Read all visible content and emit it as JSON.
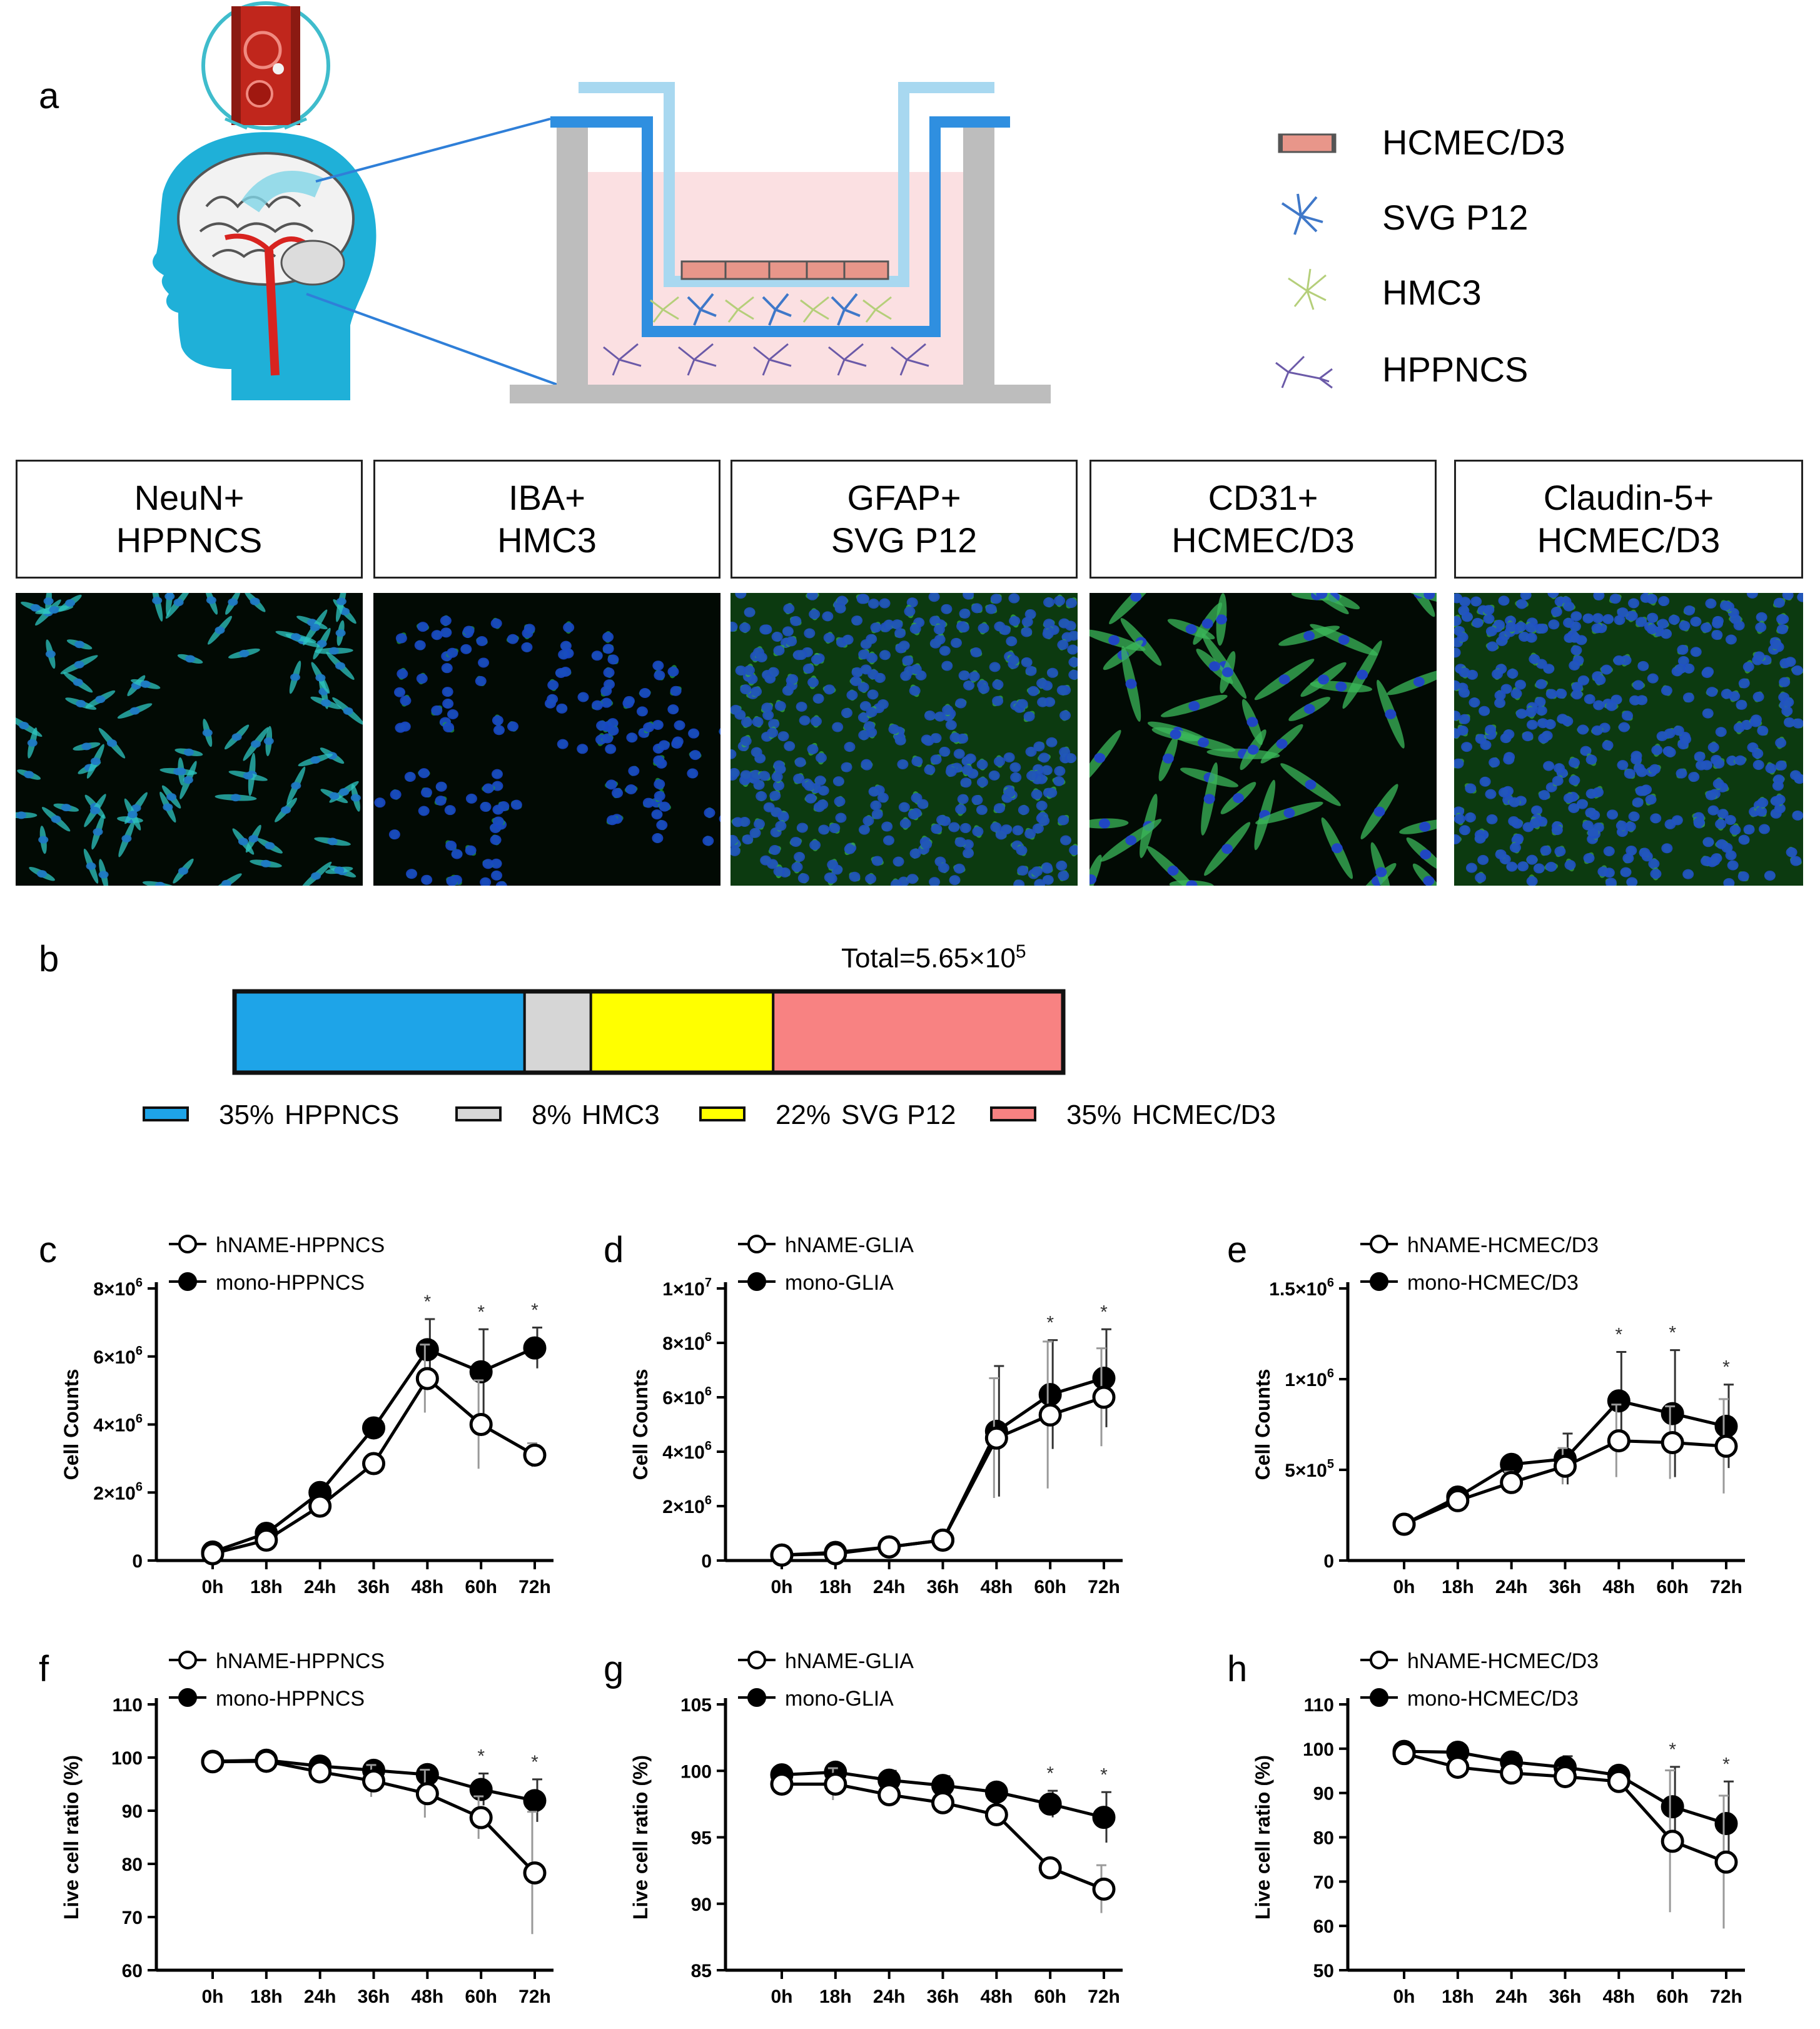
{
  "panels": {
    "a": "a",
    "b": "b",
    "c": "c",
    "d": "d",
    "e": "e",
    "f": "f",
    "g": "g",
    "h": "h"
  },
  "legend_a": [
    {
      "label": "HCMEC/D3",
      "icon": "endothelial-cell-icon",
      "color": "#e8968a"
    },
    {
      "label": "SVG P12",
      "icon": "astrocyte-icon",
      "color": "#3f78c9"
    },
    {
      "label": "HMC3",
      "icon": "microglia-icon",
      "color": "#b5cf7a"
    },
    {
      "label": "HPPNCS",
      "icon": "neuron-icon",
      "color": "#6b5aa8"
    }
  ],
  "ihc": [
    {
      "line1": "NeuN+",
      "line2": "HPPNCS",
      "stain": "#2ec5c0",
      "nuclei": "#1f78c8"
    },
    {
      "line1": "IBA+",
      "line2": "HMC3",
      "stain": "#1fa23a",
      "nuclei": "#1846c8"
    },
    {
      "line1": "GFAP+",
      "line2": "SVG P12",
      "stain": "#35b540",
      "nuclei": "#2050c0"
    },
    {
      "line1": "CD31+",
      "line2": "HCMEC/D3",
      "stain": "#3bb85a",
      "nuclei": "#1f3ed0"
    },
    {
      "line1": "Claudin-5+",
      "line2": "HCMEC/D3",
      "stain": "#3aa83a",
      "nuclei": "#2050c8"
    }
  ],
  "composition": {
    "total_prefix": "Total=5.65×10",
    "total_exp": "5",
    "segments": [
      {
        "percent": 35,
        "pct_label": "35%",
        "name": "HPPNCS",
        "color": "#1ea4e8"
      },
      {
        "percent": 8,
        "pct_label": "8%",
        "name": "HMC3",
        "color": "#d6d6d6"
      },
      {
        "percent": 22,
        "pct_label": "22%",
        "name": "SVG P12",
        "color": "#ffff00"
      },
      {
        "percent": 35,
        "pct_label": "35%",
        "name": "HCMEC/D3",
        "color": "#f88282"
      }
    ]
  },
  "chart_data": [
    {
      "panel": "c",
      "type": "line",
      "categories": [
        "0h",
        "18h",
        "24h",
        "36h",
        "48h",
        "60h",
        "72h"
      ],
      "ylabel": "Cell Counts",
      "ylim": [
        0,
        8000000
      ],
      "yticks": [
        {
          "v": 0,
          "base": "0",
          "exp": ""
        },
        {
          "v": 2000000,
          "base": "2×10",
          "exp": "6"
        },
        {
          "v": 4000000,
          "base": "4×10",
          "exp": "6"
        },
        {
          "v": 6000000,
          "base": "6×10",
          "exp": "6"
        },
        {
          "v": 8000000,
          "base": "8×10",
          "exp": "6"
        }
      ],
      "series": [
        {
          "name": "hNAME-HPPNCS",
          "marker": "open",
          "values": [
            200000,
            600000,
            1600000,
            2850000,
            5350000,
            4000000,
            3100000
          ],
          "errors": [
            50000,
            100000,
            150000,
            200000,
            1000000,
            1300000,
            350000
          ]
        },
        {
          "name": "mono-HPPNCS",
          "marker": "filled",
          "values": [
            250000,
            800000,
            2000000,
            3900000,
            6200000,
            5550000,
            6250000
          ],
          "errors": [
            50000,
            100000,
            150000,
            200000,
            900000,
            1250000,
            600000
          ]
        }
      ],
      "significance": [
        "",
        "",
        "",
        "",
        "*",
        "*",
        "*"
      ]
    },
    {
      "panel": "d",
      "type": "line",
      "categories": [
        "0h",
        "18h",
        "24h",
        "36h",
        "48h",
        "60h",
        "72h"
      ],
      "ylabel": "Cell Counts",
      "ylim": [
        0,
        10000000
      ],
      "yticks": [
        {
          "v": 0,
          "base": "0",
          "exp": ""
        },
        {
          "v": 2000000,
          "base": "2×10",
          "exp": "6"
        },
        {
          "v": 4000000,
          "base": "4×10",
          "exp": "6"
        },
        {
          "v": 6000000,
          "base": "6×10",
          "exp": "6"
        },
        {
          "v": 8000000,
          "base": "8×10",
          "exp": "6"
        },
        {
          "v": 10000000,
          "base": "1×10",
          "exp": "7"
        }
      ],
      "series": [
        {
          "name": "hNAME-GLIA",
          "marker": "open",
          "values": [
            200000,
            250000,
            500000,
            750000,
            4500000,
            5350000,
            6000000
          ],
          "errors": [
            50000,
            50000,
            80000,
            100000,
            2200000,
            2700000,
            1800000
          ]
        },
        {
          "name": "mono-GLIA",
          "marker": "filled",
          "values": [
            200000,
            300000,
            500000,
            750000,
            4750000,
            6100000,
            6700000
          ],
          "errors": [
            50000,
            50000,
            80000,
            100000,
            2400000,
            2000000,
            1800000
          ]
        }
      ],
      "significance": [
        "",
        "",
        "",
        "",
        "",
        "*",
        "*"
      ]
    },
    {
      "panel": "e",
      "type": "line",
      "categories": [
        "0h",
        "18h",
        "24h",
        "36h",
        "48h",
        "60h",
        "72h"
      ],
      "ylabel": "Cell Counts",
      "ylim": [
        0,
        1500000
      ],
      "yticks": [
        {
          "v": 0,
          "base": "0",
          "exp": ""
        },
        {
          "v": 500000,
          "base": "5×10",
          "exp": "5"
        },
        {
          "v": 1000000,
          "base": "1×10",
          "exp": "6"
        },
        {
          "v": 1500000,
          "base": "1.5×10",
          "exp": "6"
        }
      ],
      "series": [
        {
          "name": "hNAME-HCMEC/D3",
          "marker": "open",
          "values": [
            200000,
            330000,
            430000,
            520000,
            660000,
            650000,
            630000
          ],
          "errors": [
            20000,
            30000,
            60000,
            100000,
            200000,
            200000,
            260000
          ]
        },
        {
          "name": "mono-HCMEC/D3",
          "marker": "filled",
          "values": [
            200000,
            350000,
            530000,
            560000,
            880000,
            810000,
            740000
          ],
          "errors": [
            20000,
            30000,
            40000,
            140000,
            270000,
            350000,
            230000
          ]
        }
      ],
      "significance": [
        "",
        "",
        "",
        "",
        "*",
        "*",
        "*"
      ]
    },
    {
      "panel": "f",
      "type": "line",
      "categories": [
        "0h",
        "18h",
        "24h",
        "36h",
        "48h",
        "60h",
        "72h"
      ],
      "ylabel": "Live cell ratio (%)",
      "ylim": [
        60,
        110
      ],
      "yticks": [
        {
          "v": 60,
          "base": "60",
          "exp": ""
        },
        {
          "v": 70,
          "base": "70",
          "exp": ""
        },
        {
          "v": 80,
          "base": "80",
          "exp": ""
        },
        {
          "v": 90,
          "base": "90",
          "exp": ""
        },
        {
          "v": 100,
          "base": "100",
          "exp": ""
        },
        {
          "v": 110,
          "base": "110",
          "exp": ""
        }
      ],
      "series": [
        {
          "name": "hNAME-HPPNCS",
          "marker": "open",
          "values": [
            99.2,
            99.3,
            97.3,
            95.6,
            93.2,
            88.7,
            78.3
          ],
          "errors": [
            0.4,
            0.5,
            1.0,
            3.0,
            4.5,
            4.0,
            11.5
          ]
        },
        {
          "name": "mono-HPPNCS",
          "marker": "filled",
          "values": [
            99.3,
            99.5,
            98.4,
            97.6,
            96.8,
            94.0,
            91.9
          ],
          "errors": [
            0.4,
            0.5,
            0.8,
            1.0,
            1.2,
            3.0,
            4.0
          ]
        }
      ],
      "significance": [
        "",
        "",
        "",
        "",
        "",
        "*",
        "*"
      ]
    },
    {
      "panel": "g",
      "type": "line",
      "categories": [
        "0h",
        "18h",
        "24h",
        "36h",
        "48h",
        "60h",
        "72h"
      ],
      "ylabel": "Live cell ratio (%)",
      "ylim": [
        85,
        105
      ],
      "yticks": [
        {
          "v": 85,
          "base": "85",
          "exp": ""
        },
        {
          "v": 90,
          "base": "90",
          "exp": ""
        },
        {
          "v": 95,
          "base": "95",
          "exp": ""
        },
        {
          "v": 100,
          "base": "100",
          "exp": ""
        },
        {
          "v": 105,
          "base": "105",
          "exp": ""
        }
      ],
      "series": [
        {
          "name": "hNAME-GLIA",
          "marker": "open",
          "values": [
            99.0,
            99.0,
            98.2,
            97.6,
            96.7,
            92.7,
            91.1
          ],
          "errors": [
            0.5,
            1.2,
            0.6,
            0.5,
            0.4,
            0.4,
            1.8
          ]
        },
        {
          "name": "mono-GLIA",
          "marker": "filled",
          "values": [
            99.7,
            99.9,
            99.3,
            98.9,
            98.4,
            97.5,
            96.5
          ],
          "errors": [
            0.3,
            0.4,
            0.7,
            0.7,
            0.6,
            1.0,
            1.9
          ]
        }
      ],
      "significance": [
        "",
        "",
        "",
        "",
        "",
        "*",
        "*"
      ]
    },
    {
      "panel": "h",
      "type": "line",
      "categories": [
        "0h",
        "18h",
        "24h",
        "36h",
        "48h",
        "60h",
        "72h"
      ],
      "ylabel": "Live cell ratio (%)",
      "ylim": [
        50,
        110
      ],
      "yticks": [
        {
          "v": 50,
          "base": "50",
          "exp": ""
        },
        {
          "v": 60,
          "base": "60",
          "exp": ""
        },
        {
          "v": 70,
          "base": "70",
          "exp": ""
        },
        {
          "v": 80,
          "base": "80",
          "exp": ""
        },
        {
          "v": 90,
          "base": "90",
          "exp": ""
        },
        {
          "v": 100,
          "base": "100",
          "exp": ""
        },
        {
          "v": 110,
          "base": "110",
          "exp": ""
        }
      ],
      "series": [
        {
          "name": "hNAME-HCMEC/D3",
          "marker": "open",
          "values": [
            98.9,
            95.8,
            94.5,
            93.7,
            92.6,
            79.1,
            74.4
          ],
          "errors": [
            0.5,
            1.0,
            1.5,
            2.0,
            1.5,
            16.0,
            15.0
          ]
        },
        {
          "name": "mono-HCMEC/D3",
          "marker": "filled",
          "values": [
            99.4,
            99.2,
            97.0,
            95.8,
            94.0,
            86.9,
            83.1
          ],
          "errors": [
            0.5,
            0.6,
            2.0,
            2.5,
            1.5,
            9.0,
            9.5
          ]
        }
      ],
      "significance": [
        "",
        "",
        "",
        "",
        "",
        "*",
        "*"
      ]
    }
  ]
}
